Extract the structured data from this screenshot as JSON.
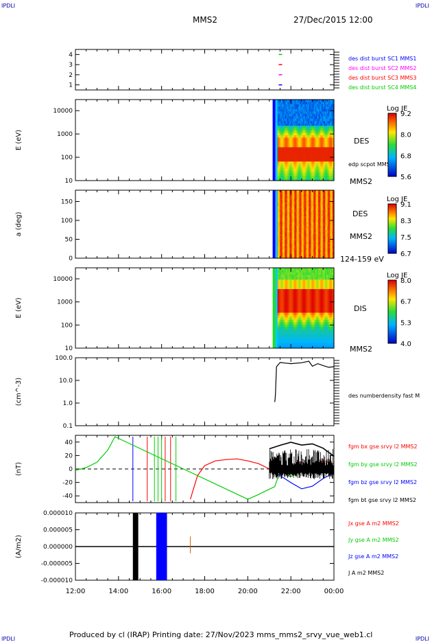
{
  "header": {
    "corner_tl": "IPDLI",
    "corner_tr": "IPDLI",
    "corner_bl": "IPDLI",
    "corner_br": "IPDLI",
    "spacecraft": "MMS2",
    "datetime": "27/Dec/2015 12:00"
  },
  "footer": {
    "text": "Produced by cl (IRAP)   Printing date: 27/Nov/2023   mms_mms2_srvy_vue_web1.cl"
  },
  "colors": {
    "mms1": "#0000ff",
    "mms2": "#ff00ff",
    "mms3": "#ff0000",
    "mms4": "#00cc00",
    "bx": "#ff0000",
    "by": "#00cc00",
    "bz": "#0000ff",
    "bt": "#000000"
  },
  "chart_data": [
    {
      "type": "scatter",
      "panel": "spacecraft-availability",
      "yticks": [
        "1",
        "2",
        "3",
        "4"
      ],
      "ylim": [
        0.5,
        4.5
      ],
      "series": [
        {
          "name": "des dist burst SC1 MMS1",
          "y": 1,
          "x": [
            "21:30"
          ]
        },
        {
          "name": "des dist burst SC2 MMS2",
          "y": 2,
          "x": [
            "21:30"
          ]
        },
        {
          "name": "des dist burst SC3 MMS3",
          "y": 3,
          "x": [
            "21:30"
          ]
        },
        {
          "name": "des dist burst SC4 MMS4",
          "y": 4,
          "x": [
            "21:30"
          ]
        }
      ]
    },
    {
      "type": "heatmap",
      "panel": "des-energy-spectrogram",
      "ylabel": "E (eV)",
      "yscale": "log",
      "ylim": [
        10,
        30000
      ],
      "yticks": [
        "10",
        "100",
        "1000",
        "10000"
      ],
      "data_start": "21:15",
      "label": "DES",
      "extra_label": "edp scpot MMS2",
      "sc_label": "MMS2",
      "colorbar": {
        "title": "Log JE",
        "ticks": [
          "9.2",
          "8.0",
          "6.8",
          "5.6"
        ],
        "range": [
          5.6,
          9.2
        ]
      }
    },
    {
      "type": "heatmap",
      "panel": "des-pitch-angle",
      "ylabel": "a (deg)",
      "ylim": [
        0,
        180
      ],
      "yticks": [
        "0",
        "50",
        "100",
        "150"
      ],
      "data_start": "21:15",
      "label": "DES",
      "sc_label": "MMS2",
      "energy_range": "124-159 eV",
      "colorbar": {
        "title": "Log JE",
        "ticks": [
          "9.1",
          "8.3",
          "7.5",
          "6.7"
        ],
        "range": [
          6.7,
          9.1
        ]
      }
    },
    {
      "type": "heatmap",
      "panel": "dis-energy-spectrogram",
      "ylabel": "E (eV)",
      "yscale": "log",
      "ylim": [
        10,
        30000
      ],
      "yticks": [
        "10",
        "100",
        "1000",
        "10000"
      ],
      "data_start": "21:15",
      "label": "DIS",
      "sc_label": "MMS2",
      "colorbar": {
        "title": "Log JE",
        "ticks": [
          "8.0",
          "6.7",
          "5.3",
          "4.0"
        ],
        "range": [
          4.0,
          8.0
        ]
      }
    },
    {
      "type": "line",
      "panel": "density",
      "ylabel": "(cm^-3)",
      "yscale": "log",
      "ylim": [
        0.1,
        100
      ],
      "yticks": [
        "0.1",
        "1.0",
        "10.0",
        "100.0"
      ],
      "series": [
        {
          "name": "des numberdensity fast M",
          "x": [
            "21:15",
            "21:16",
            "21:17",
            "21:20",
            "21:30",
            "21:45",
            "22:00",
            "22:30",
            "22:50",
            "23:00",
            "23:15",
            "23:30",
            "23:45",
            "00:00"
          ],
          "y": [
            1.1,
            1.4,
            2.5,
            40,
            62,
            58,
            55,
            60,
            70,
            42,
            55,
            45,
            38,
            40
          ]
        }
      ]
    },
    {
      "type": "line",
      "panel": "magnetic-field",
      "ylabel": "(nT)",
      "ylim": [
        -50,
        50
      ],
      "yticks": [
        "-40",
        "-20",
        "0",
        "20",
        "40"
      ],
      "series": [
        {
          "name": "fgm bx gse srvy l2 MMS2",
          "x": [
            "17:20",
            "17:40",
            "18:00",
            "18:30",
            "19:00",
            "19:30",
            "20:00",
            "20:30",
            "21:00",
            "21:30",
            "22:00",
            "22:30",
            "23:00",
            "23:30",
            "00:00"
          ],
          "y": [
            -45,
            -10,
            5,
            12,
            14,
            15,
            12,
            8,
            0,
            5,
            3,
            8,
            5,
            10,
            10
          ]
        },
        {
          "name": "fgm by gse srvy l2 MMS2",
          "x": [
            "12:00",
            "12:30",
            "13:00",
            "13:30",
            "13:50",
            "20:00",
            "20:30",
            "21:00",
            "21:15",
            "21:30",
            "22:00",
            "22:30",
            "23:00",
            "23:30",
            "00:00"
          ],
          "y": [
            -2,
            2,
            10,
            28,
            48,
            -45,
            -38,
            -30,
            -25,
            -5,
            -10,
            -5,
            -5,
            -5,
            0
          ]
        },
        {
          "name": "fgm bz gse srvy l2 MMS2",
          "x": [
            "21:00",
            "21:30",
            "22:00",
            "22:30",
            "23:00",
            "23:30",
            "00:00"
          ],
          "y": [
            0,
            -10,
            -20,
            -30,
            -25,
            -15,
            -5
          ]
        },
        {
          "name": "fgm bt gse srvy l2 MMS2",
          "x": [
            "21:00",
            "21:30",
            "22:00",
            "22:30",
            "23:00",
            "23:30",
            "00:00"
          ],
          "y": [
            30,
            35,
            40,
            35,
            38,
            30,
            20
          ]
        }
      ]
    },
    {
      "type": "line",
      "panel": "current-density",
      "ylabel": "(A/m2)",
      "ylim": [
        -1e-05,
        1e-05
      ],
      "yticks": [
        "-0.000010",
        "-0.000005",
        "0.000000",
        "0.000005",
        "0.000010"
      ],
      "xticks": [
        "12:00",
        "14:00",
        "16:00",
        "18:00",
        "20:00",
        "22:00",
        "00:00"
      ],
      "series": [
        {
          "name": "Jx gse A m2 MMS2"
        },
        {
          "name": "Jy gse A m2 MMS2"
        },
        {
          "name": "Jz gse A m2 MMS2"
        },
        {
          "name": "J A m2 MMS2"
        }
      ]
    }
  ]
}
